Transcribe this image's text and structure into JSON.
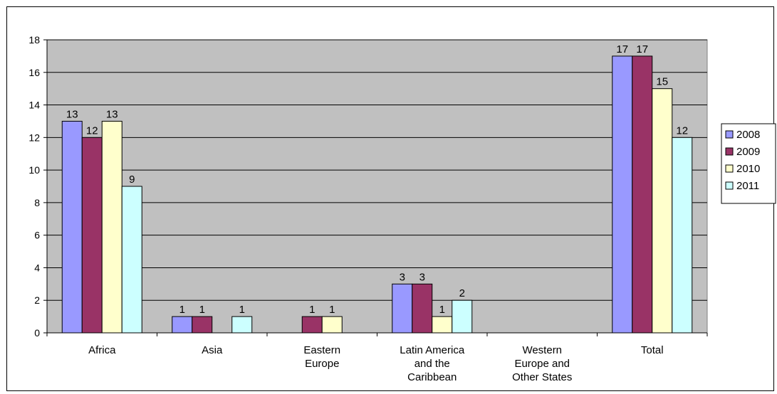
{
  "chart_data": {
    "type": "bar",
    "categories": [
      [
        "Africa"
      ],
      [
        "Asia"
      ],
      [
        "Eastern",
        "Europe"
      ],
      [
        "Latin America",
        "and the",
        "Caribbean"
      ],
      [
        "Western",
        "Europe and",
        "Other States"
      ],
      [
        "Total"
      ]
    ],
    "series": [
      {
        "name": "2008",
        "values": [
          13,
          1,
          null,
          3,
          null,
          17
        ]
      },
      {
        "name": "2009",
        "values": [
          12,
          1,
          1,
          3,
          null,
          17
        ]
      },
      {
        "name": "2010",
        "values": [
          13,
          null,
          1,
          1,
          null,
          15
        ]
      },
      {
        "name": "2011",
        "values": [
          9,
          1,
          null,
          2,
          null,
          12
        ]
      }
    ],
    "ylim": [
      0,
      18
    ],
    "yticks": [
      0,
      2,
      4,
      6,
      8,
      10,
      12,
      14,
      16,
      18
    ],
    "grid": true,
    "legend": "right",
    "colors": {
      "plot_bg": "#c0c0c0",
      "series": [
        "#9999ff",
        "#993366",
        "#ffffcc",
        "#ccffff"
      ]
    }
  }
}
